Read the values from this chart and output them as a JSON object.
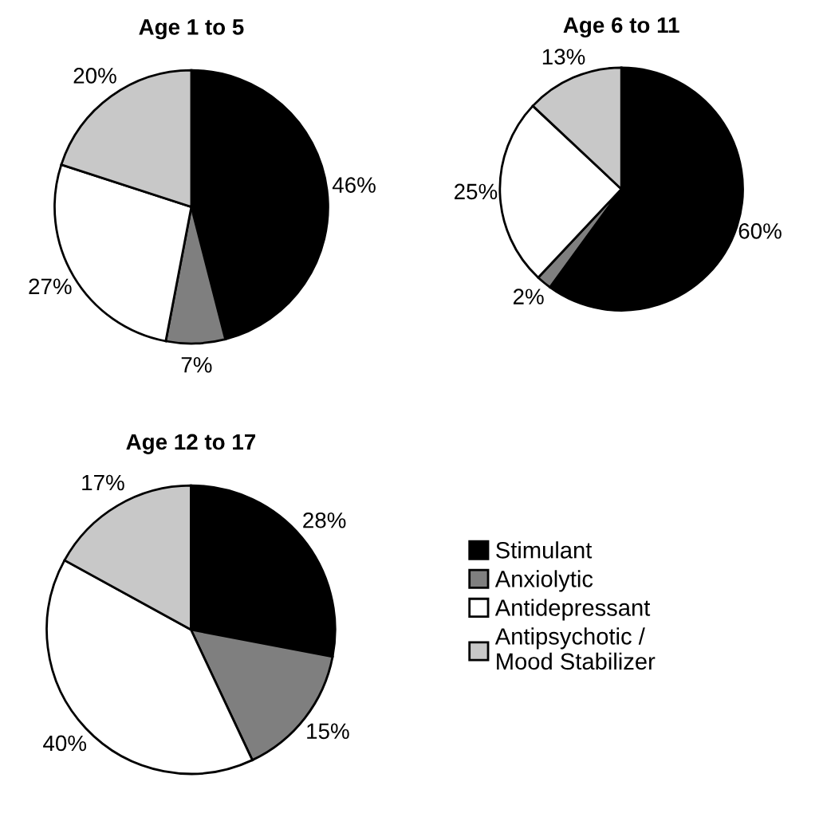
{
  "chart_data": [
    {
      "type": "pie",
      "title": "Age 1 to 5",
      "categories": [
        "Stimulant",
        "Anxiolytic",
        "Antidepressant",
        "Antipsychotic / Mood Stabilizer"
      ],
      "values": [
        46,
        7,
        27,
        20
      ],
      "colors": [
        "#000000",
        "#7f7f7f",
        "#ffffff",
        "#c8c8c8"
      ],
      "value_labels": [
        "46%",
        "7%",
        "27%",
        "20%"
      ],
      "legend": "bottom right"
    },
    {
      "type": "pie",
      "title": "Age 6 to 11",
      "categories": [
        null,
        null,
        null,
        null
      ],
      "values": [
        60,
        2,
        25,
        13
      ],
      "colors": [
        "#000000",
        "#7f7f7f",
        "#ffffff",
        "#c8c8c8"
      ],
      "value_labels": [
        "60%",
        "2%",
        "25%",
        "13%"
      ]
    },
    {
      "type": "pie",
      "title": "Age 12 to 17",
      "categories": [
        null,
        null,
        null,
        null
      ],
      "values": [
        28,
        15,
        40,
        17
      ],
      "colors": [
        "#000000",
        "#7f7f7f",
        "#ffffff",
        "#c8c8c8"
      ],
      "value_labels": [
        "28%",
        "15%",
        "40%",
        "17%"
      ]
    }
  ]
}
